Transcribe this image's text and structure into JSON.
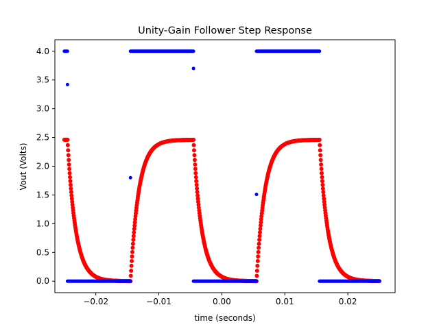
{
  "chart_data": {
    "type": "scatter",
    "title": "Unity-Gain Follower Step Response",
    "xlabel": "time (seconds)",
    "ylabel": "Vout (Volts)",
    "xlim": [
      -0.0265,
      0.0275
    ],
    "ylim": [
      -0.2,
      4.2
    ],
    "x_ticks": [
      -0.02,
      -0.01,
      0.0,
      0.01,
      0.02
    ],
    "x_tick_labels": [
      "−0.02",
      "−0.01",
      "0.00",
      "0.01",
      "0.02"
    ],
    "y_ticks": [
      0.0,
      0.5,
      1.0,
      1.5,
      2.0,
      2.5,
      3.0,
      3.5,
      4.0
    ],
    "y_tick_labels": [
      "0.0",
      "0.5",
      "1.0",
      "1.5",
      "2.0",
      "2.5",
      "3.0",
      "3.5",
      "4.0"
    ],
    "grid": false,
    "series": [
      {
        "color": "#0000ff",
        "marker": "circle",
        "segments": [
          {
            "x": [
              -0.025,
              -0.0245
            ],
            "y": [
              4.0,
              4.0
            ]
          },
          {
            "x": [
              -0.0245,
              -0.0145
            ],
            "y": [
              0.0,
              0.0
            ]
          },
          {
            "x": [
              -0.0145,
              -0.0045
            ],
            "y": [
              4.0,
              4.0
            ]
          },
          {
            "x": [
              -0.0045,
              0.0055
            ],
            "y": [
              0.0,
              0.0
            ]
          },
          {
            "x": [
              0.0055,
              0.0155
            ],
            "y": [
              4.0,
              4.0
            ]
          },
          {
            "x": [
              0.0155,
              0.025
            ],
            "y": [
              0.0,
              0.0
            ]
          }
        ],
        "transition_points": [
          {
            "x": -0.0245,
            "y": 3.42
          },
          {
            "x": -0.0145,
            "y": 1.8
          },
          {
            "x": -0.0045,
            "y": 3.7
          },
          {
            "x": 0.0055,
            "y": 1.51
          }
        ]
      },
      {
        "color": "#ff0000",
        "marker": "circle",
        "high": 2.46,
        "low": 0.0,
        "time_constant": 0.0013,
        "start": -0.025,
        "end": 0.025,
        "step_times": [
          -0.0245,
          -0.0145,
          -0.0045,
          0.0055,
          0.0155
        ],
        "initial_value": 2.46,
        "initial_direction": "fall"
      }
    ]
  }
}
